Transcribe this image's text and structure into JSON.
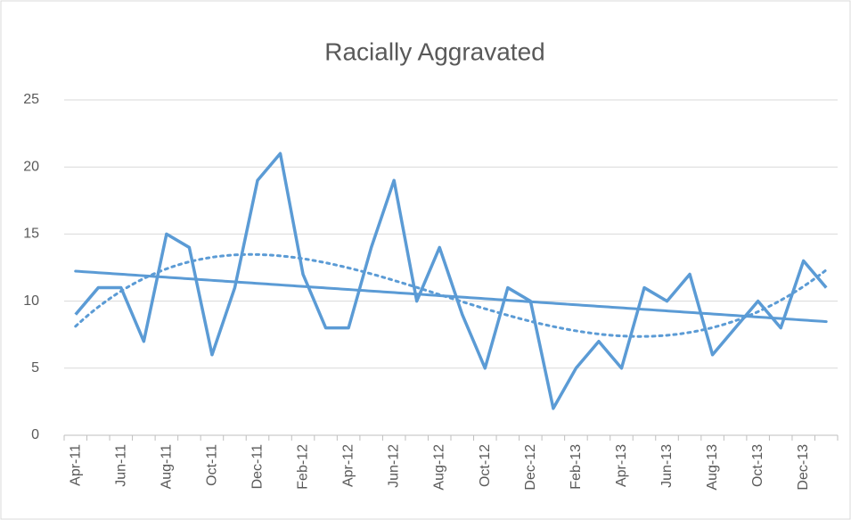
{
  "chart_data": {
    "type": "line",
    "title": "Racially Aggravated",
    "categories": [
      "Apr-11",
      null,
      "Jun-11",
      null,
      "Aug-11",
      null,
      "Oct-11",
      null,
      "Dec-11",
      null,
      "Feb-12",
      null,
      "Apr-12",
      null,
      "Jun-12",
      null,
      "Aug-12",
      null,
      "Oct-12",
      null,
      "Dec-12",
      null,
      "Feb-13",
      null,
      "Apr-13",
      null,
      "Jun-13",
      null,
      "Aug-13",
      null,
      "Oct-13",
      null,
      "Dec-13",
      null
    ],
    "series": [
      {
        "name": "Racially Aggravated",
        "color": "#5b9bd5",
        "values": [
          9,
          11,
          11,
          7,
          15,
          14,
          6,
          11,
          19,
          21,
          12,
          8,
          8,
          14,
          19,
          10,
          14,
          9,
          5,
          11,
          10,
          2,
          5,
          7,
          5,
          11,
          10,
          12,
          6,
          8,
          10,
          8,
          13,
          11
        ]
      }
    ],
    "trendlines": [
      {
        "type": "linear",
        "style": "solid"
      },
      {
        "type": "polynomial",
        "order": 4,
        "style": "dotted"
      }
    ],
    "ylim": [
      0,
      25
    ],
    "yticks": [
      0,
      5,
      10,
      15,
      20,
      25
    ],
    "grid": true
  }
}
